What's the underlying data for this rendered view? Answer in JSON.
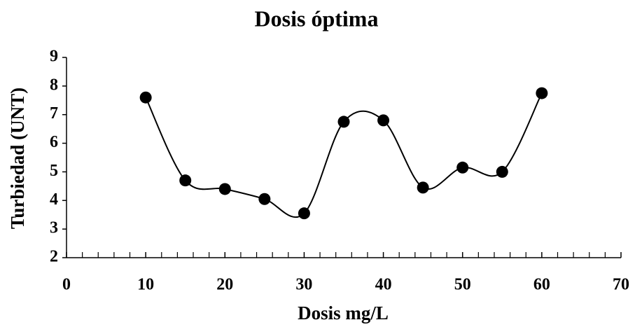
{
  "chart_data": {
    "type": "line",
    "title": "Dosis óptima",
    "x_label": "Dosis mg/L",
    "y_label": "Turbiedad (UNT)",
    "x": [
      10,
      15,
      20,
      25,
      30,
      35,
      40,
      45,
      50,
      55,
      60
    ],
    "series": [
      {
        "name": "Turbiedad",
        "color": "#000000",
        "values": [
          7.6,
          4.7,
          4.4,
          4.05,
          3.55,
          6.75,
          6.8,
          4.45,
          5.15,
          5.0,
          7.75
        ]
      }
    ],
    "smooth": true,
    "markers": true,
    "legend": false,
    "grid": false,
    "xlim": [
      0,
      70
    ],
    "xticks": [
      0,
      10,
      20,
      30,
      40,
      50,
      60,
      70
    ],
    "xminorticks": [
      2,
      4,
      6,
      8,
      12,
      14,
      16,
      18,
      22,
      24,
      26,
      28,
      32,
      34,
      36,
      38,
      42,
      44,
      46,
      48,
      52,
      54,
      56,
      58,
      62,
      64,
      66,
      68
    ],
    "ylim": [
      2,
      9
    ],
    "yticks": [
      2,
      3,
      4,
      5,
      6,
      7,
      8,
      9
    ]
  }
}
